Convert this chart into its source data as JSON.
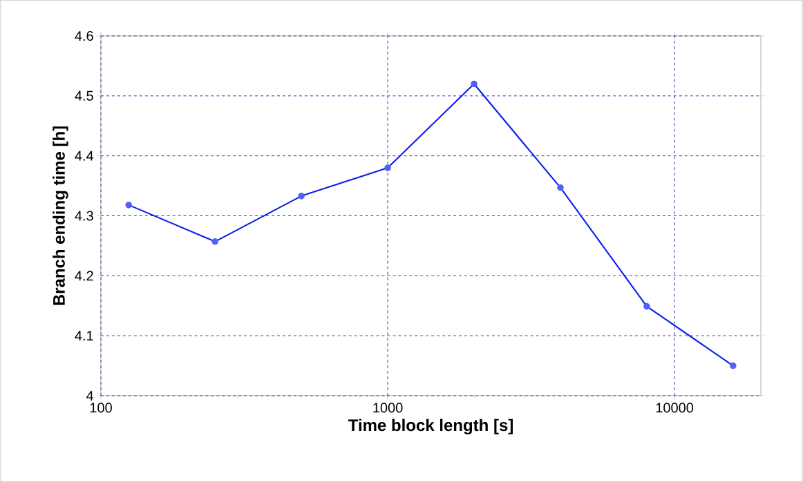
{
  "chart_data": {
    "type": "line",
    "xlabel": "Time block length [s]",
    "ylabel": "Branch ending time [h]",
    "x": [
      125,
      250,
      500,
      1000,
      2000,
      4000,
      8000,
      16000
    ],
    "series": [
      {
        "color": "#0a1ef0",
        "values": [
          4.318,
          4.257,
          4.333,
          4.38,
          4.52,
          4.347,
          4.149,
          4.05
        ]
      }
    ],
    "log": "x",
    "xlim": [
      100,
      20000
    ],
    "xticks": [
      100,
      1000,
      10000
    ],
    "ylim": [
      4,
      4.6
    ],
    "yticks": [
      4,
      4.1,
      4.2,
      4.3,
      4.4,
      4.5,
      4.6
    ],
    "grid": true,
    "marker": "circle",
    "line_style": "solid"
  }
}
